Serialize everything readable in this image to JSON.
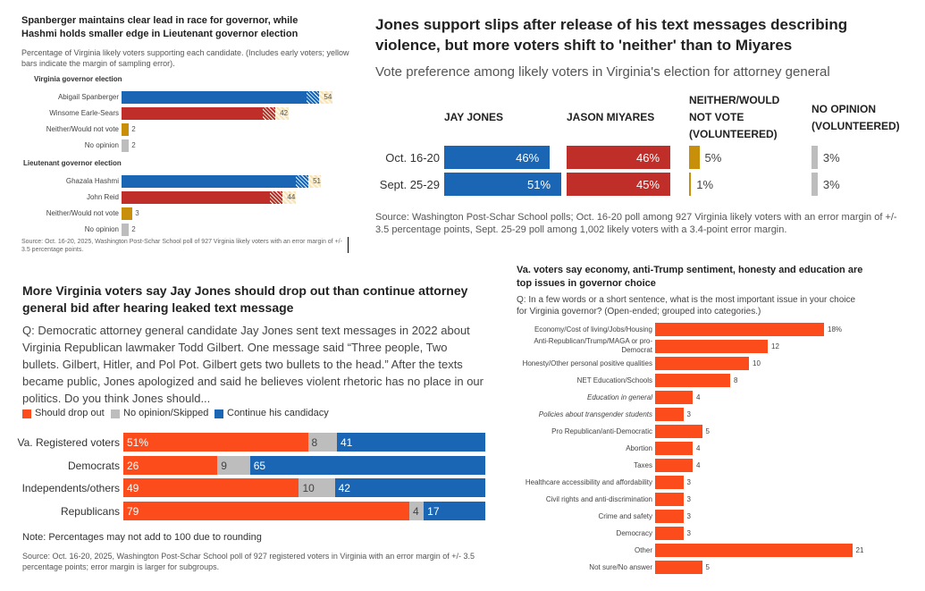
{
  "chart_data": [
    {
      "type": "bar",
      "title": "Spanberger maintains clear lead in race for governor, while Hashmi holds smaller edge in Lieutenant governor election",
      "subtitle": "Percentage of Virginia likely voters supporting each candidate. (Includes early voters; yellow bars indicate the margin of sampling error).",
      "groups": [
        {
          "name": "Virginia governor election",
          "items": [
            {
              "label": "Abigail Spanberger",
              "value": 54,
              "color": "#1a65b4"
            },
            {
              "label": "Winsome Earle-Sears",
              "value": 42,
              "color": "#c02e29"
            },
            {
              "label": "Neither/Would not vote",
              "value": 2,
              "color": "#c8900a"
            },
            {
              "label": "No opinion",
              "value": 2,
              "color": "#bdbdbd"
            }
          ]
        },
        {
          "name": "Lieutenant governor election",
          "items": [
            {
              "label": "Ghazala Hashmi",
              "value": 51,
              "color": "#1a65b4"
            },
            {
              "label": "John Reid",
              "value": 44,
              "color": "#c02e29"
            },
            {
              "label": "Neither/Would not vote",
              "value": 3,
              "color": "#c8900a"
            },
            {
              "label": "No opinion",
              "value": 2,
              "color": "#bdbdbd"
            }
          ]
        }
      ],
      "margin_of_error": 3.5,
      "source": "Source: Oct. 16-20, 2025, Washington Post-Schar School poll of 927 Virginia likely voters with an error margin of +/- 3.5 percentage points."
    },
    {
      "type": "table",
      "title": "Jones support slips after release of his text messages describing violence, but more voters shift to 'neither' than to Miyares",
      "subtitle": "Vote preference among likely voters in Virginia's election for attorney general",
      "columns": [
        "JAY JONES",
        "JASON MIYARES",
        "NEITHER/WOULD NOT VOTE (VOLUNTEERED)",
        "NO OPINION (VOLUNTEERED)"
      ],
      "column_colors": [
        "#1a65b4",
        "#c02e29",
        "#c8900a",
        "#bdbdbd"
      ],
      "rows": [
        {
          "label": "Oct. 16-20",
          "values": [
            46,
            46,
            5,
            3
          ],
          "labels": [
            "46%",
            "46%",
            "5%",
            "3%"
          ]
        },
        {
          "label": "Sept. 25-29",
          "values": [
            51,
            45,
            1,
            3
          ],
          "labels": [
            "51%",
            "45%",
            "1%",
            "3%"
          ]
        }
      ],
      "source": "Source: Washington Post-Schar School polls; Oct. 16-20 poll among 927 Virginia likely voters with an error margin of +/- 3.5 percentage points, Sept. 25-29 poll among 1,002 likely voters with a 3.4-point error margin."
    },
    {
      "type": "bar",
      "stacked": true,
      "title": "More Virginia voters say Jay Jones should drop out than continue attorney general bid after hearing leaked text message",
      "subtitle": "Q: Democratic attorney general candidate Jay Jones sent text messages in 2022 about Virginia Republican lawmaker Todd Gilbert. One message said “Three people, Two bullets. Gilbert, Hitler, and Pol Pot. Gilbert gets two bullets to the head.” After the texts became public, Jones apologized and said he believes violent rhetoric has no place in our politics. Do you think Jones should...",
      "categories": [
        "Va. Registered voters",
        "Democrats",
        "Independents/others",
        "Republicans"
      ],
      "series": [
        {
          "name": "Should drop out",
          "color": "#fc4c1c",
          "values": [
            51,
            26,
            49,
            79
          ],
          "labels": [
            "51%",
            "26",
            "49",
            "79"
          ]
        },
        {
          "name": "No opinion/Skipped",
          "color": "#bdbdbd",
          "values": [
            8,
            9,
            10,
            4
          ],
          "labels": [
            "8",
            "9",
            "10",
            "4"
          ]
        },
        {
          "name": "Continue his candidacy",
          "color": "#1a65b4",
          "values": [
            41,
            65,
            42,
            17
          ],
          "labels": [
            "41",
            "65",
            "42",
            "17"
          ]
        }
      ],
      "legend": "top-left",
      "note": "Note: Percentages may not add to 100 due to rounding",
      "source": "Source: Oct. 16-20, 2025, Washington Post-Schar School poll of 927 registered voters in Virginia with an error margin of +/- 3.5 percentage points; error margin is larger for subgroups."
    },
    {
      "type": "bar",
      "title": "Va. voters say economy, anti-Trump sentiment, honesty and education are top issues in governor choice",
      "subtitle": "Q: In a few words or a short sentence, what is the most important issue in your choice for Virginia governor? (Open-ended; grouped into categories.)",
      "color": "#fc4c1c",
      "categories": [
        "Economy/Cost of living/Jobs/Housing",
        "Anti-Republican/Trump/MAGA or pro-Democrat",
        "Honesty/Other personal positive qualities",
        "NET Education/Schools",
        "Education in general",
        "Policies about transgender students",
        "Pro Republican/anti-Democratic",
        "Abortion",
        "Taxes",
        "Healthcare accessibility and affordability",
        "Civil rights and anti-discrimination",
        "Crime and safety",
        "Democracy",
        "Other",
        "Not sure/No answer"
      ],
      "italic": [
        false,
        false,
        false,
        false,
        true,
        true,
        false,
        false,
        false,
        false,
        false,
        false,
        false,
        false,
        false
      ],
      "values": [
        18,
        12,
        10,
        8,
        4,
        3,
        5,
        4,
        4,
        3,
        3,
        3,
        3,
        21,
        5
      ],
      "labels": [
        "18%",
        "12",
        "10",
        "8",
        "4",
        "3",
        "5",
        "4",
        "4",
        "3",
        "3",
        "3",
        "3",
        "21",
        "5"
      ]
    }
  ]
}
